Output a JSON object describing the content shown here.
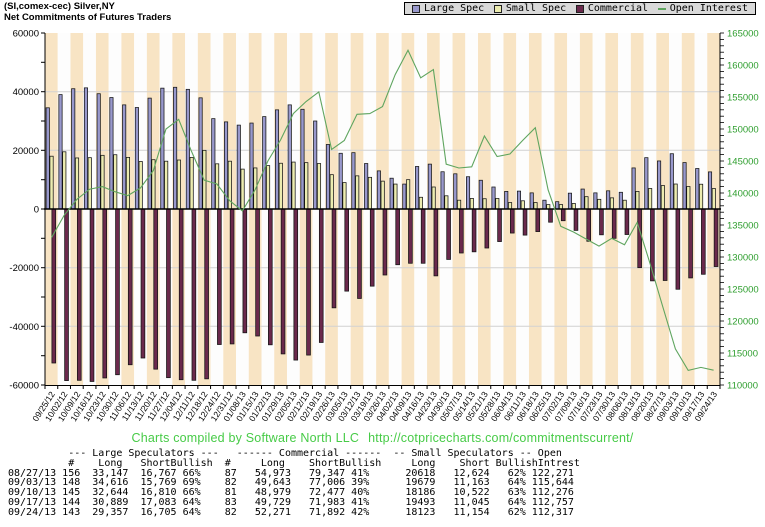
{
  "header": {
    "symbol_line": "(SI,comex-cec) Silver,NY",
    "subtitle": "Net Commitments of Futures Traders"
  },
  "footer": {
    "credit": "Charts compiled by Software North LLC",
    "url": "http://cotpricecharts.com/commitmentscurrent/"
  },
  "colors": {
    "large_spec": "#9898CC",
    "small_spec": "#ECECB0",
    "commercial": "#6A294C",
    "open_interest": "#5FA55F",
    "bar_outline": "#141414",
    "stripe_wheat": "#F8E4C4",
    "stripe_white": "#FDFDFD",
    "gridline": "#D2D2D2",
    "axis_text": "#000000",
    "right_axis_text": "#2E9E2E",
    "footer_text": "#47CB47",
    "legend_bg": "#D9D9D9"
  },
  "chart_data": {
    "type": "bar",
    "title": "Net Commitments of Futures Traders",
    "xlabel": "",
    "ylabel": "",
    "legend_position": "top-right",
    "grid": "horizontal",
    "x": [
      "09/25/12",
      "10/02/12",
      "10/09/12",
      "10/16/12",
      "10/23/12",
      "10/30/12",
      "11/06/12",
      "11/13/12",
      "11/20/12",
      "11/27/12",
      "12/04/12",
      "12/11/12",
      "12/18/12",
      "12/24/12",
      "12/31/12",
      "01/08/13",
      "01/15/13",
      "01/22/13",
      "01/29/13",
      "02/05/13",
      "02/12/13",
      "02/19/13",
      "02/26/13",
      "03/05/13",
      "03/12/13",
      "03/19/13",
      "03/26/13",
      "04/02/13",
      "04/09/13",
      "04/16/13",
      "04/23/13",
      "04/30/13",
      "05/07/13",
      "05/14/13",
      "05/21/13",
      "05/28/13",
      "06/04/13",
      "06/11/13",
      "06/18/13",
      "06/25/13",
      "07/02/13",
      "07/09/13",
      "07/16/13",
      "07/23/13",
      "07/30/13",
      "08/06/13",
      "08/13/13",
      "08/20/13",
      "08/27/13",
      "09/03/13",
      "09/10/13",
      "09/17/13",
      "09/24/13"
    ],
    "series": [
      {
        "name": "Large Spec",
        "type": "bar",
        "axis": "left",
        "color": "#9898CC",
        "values": [
          34500,
          39000,
          41000,
          41300,
          39300,
          38000,
          35500,
          34600,
          37800,
          41200,
          41500,
          40800,
          37900,
          30800,
          29700,
          28600,
          29300,
          31500,
          33800,
          35500,
          34000,
          30000,
          22000,
          19000,
          19200,
          15500,
          13000,
          10500,
          8500,
          14500,
          15300,
          12700,
          12000,
          11000,
          9800,
          7500,
          6000,
          6100,
          5500,
          3000,
          2500,
          5400,
          6800,
          5500,
          6200,
          5700,
          14000,
          17500,
          16380,
          18847,
          15834,
          13806,
          12652
        ]
      },
      {
        "name": "Small Spec",
        "type": "bar",
        "axis": "left",
        "color": "#ECECB0",
        "values": [
          18000,
          19500,
          17400,
          17500,
          18300,
          18500,
          17600,
          16200,
          16800,
          16300,
          16700,
          17600,
          20000,
          15400,
          16300,
          13600,
          14000,
          14800,
          15600,
          16000,
          15800,
          15500,
          11700,
          9000,
          11300,
          10800,
          9500,
          8500,
          10000,
          4000,
          7500,
          4500,
          3000,
          3600,
          3500,
          3600,
          2200,
          2800,
          2200,
          1500,
          1500,
          1900,
          4200,
          3300,
          3800,
          3000,
          6000,
          7000,
          7994,
          8516,
          7664,
          8448,
          6969
        ]
      },
      {
        "name": "Commercial",
        "type": "bar",
        "axis": "left",
        "color": "#6A294C",
        "values": [
          -52500,
          -58500,
          -58400,
          -58800,
          -57600,
          -56500,
          -53100,
          -50800,
          -54600,
          -57500,
          -58200,
          -58400,
          -57900,
          -46200,
          -46000,
          -42200,
          -43300,
          -46300,
          -49400,
          -51500,
          -49800,
          -45500,
          -33700,
          -28000,
          -30500,
          -26300,
          -22500,
          -19000,
          -18500,
          -18500,
          -22800,
          -17200,
          -15000,
          -14600,
          -13300,
          -11100,
          -8200,
          -8900,
          -7700,
          -4500,
          -4000,
          -7300,
          -11000,
          -8800,
          -10000,
          -8700,
          -20000,
          -24500,
          -24374,
          -27363,
          -23498,
          -22254,
          -19621
        ]
      },
      {
        "name": "Open Interest",
        "type": "line",
        "axis": "right",
        "color": "#5FA55F",
        "values": [
          133000,
          136500,
          139000,
          140600,
          141000,
          140200,
          139600,
          140800,
          143500,
          150000,
          151500,
          146500,
          142000,
          141400,
          138800,
          137200,
          140500,
          145000,
          148300,
          152400,
          154300,
          155800,
          146800,
          148200,
          152300,
          152400,
          153500,
          158500,
          162300,
          158000,
          159300,
          144500,
          143900,
          144100,
          148900,
          145700,
          146100,
          148200,
          150200,
          140500,
          134800,
          133900,
          132800,
          131700,
          132900,
          131900,
          135400,
          129000,
          122271,
          115644,
          112276,
          112757,
          112317
        ]
      }
    ],
    "left_axis": {
      "min": -60000,
      "max": 60000,
      "label_step": 20000,
      "tick_step": 10000,
      "labels": [
        "60000",
        "40000",
        "20000",
        "0",
        "-20000",
        "-40000",
        "-60000"
      ]
    },
    "right_axis": {
      "min": 110000,
      "max": 165000,
      "label_step": 5000,
      "tick_step": 1000,
      "labels": [
        "165000",
        "160000",
        "155000",
        "150000",
        "145000",
        "140000",
        "135000",
        "130000",
        "125000",
        "120000",
        "115000",
        "110000"
      ]
    }
  },
  "table": {
    "group_headers": [
      "--- Large Speculators ---",
      "------ Commercial ------",
      "-- Small Speculators --",
      "Open"
    ],
    "col_headers": [
      "#",
      "Long",
      "Short",
      "Bullish",
      "#",
      "Long",
      "Short",
      "Bullish",
      "Long",
      "Short",
      "Bullish",
      "Intrest"
    ],
    "rows": [
      [
        "08/27/13",
        "156",
        "33,147",
        "16,767",
        "66%",
        "87",
        "54,973",
        "79,347",
        "41%",
        "20618",
        "12,624",
        "62%",
        "122,271"
      ],
      [
        "09/03/13",
        "148",
        "34,616",
        "15,769",
        "69%",
        "82",
        "49,643",
        "77,006",
        "39%",
        "19679",
        "11,163",
        "64%",
        "115,644"
      ],
      [
        "09/10/13",
        "145",
        "32,644",
        "16,810",
        "66%",
        "81",
        "48,979",
        "72,477",
        "40%",
        "18186",
        "10,522",
        "63%",
        "112,276"
      ],
      [
        "09/17/13",
        "144",
        "30,889",
        "17,083",
        "64%",
        "83",
        "49,729",
        "71,983",
        "41%",
        "19493",
        "11,045",
        "64%",
        "112,757"
      ],
      [
        "09/24/13",
        "143",
        "29,357",
        "16,705",
        "64%",
        "82",
        "52,271",
        "71,892",
        "42%",
        "18123",
        "11,154",
        "62%",
        "112,317"
      ]
    ]
  }
}
